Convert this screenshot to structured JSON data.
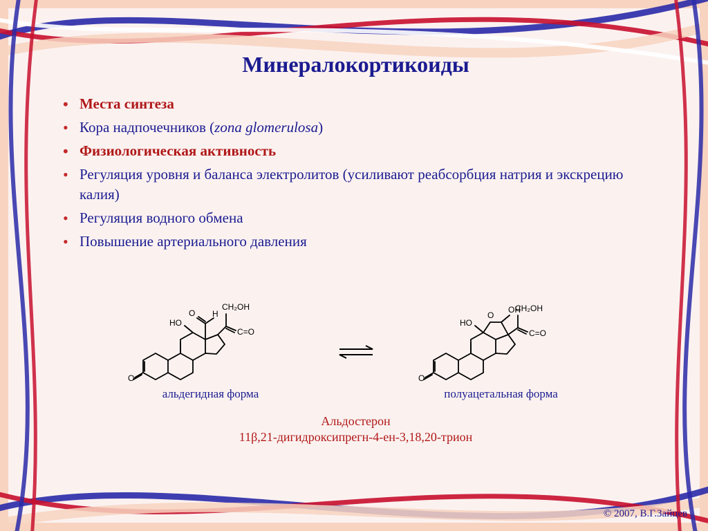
{
  "colors": {
    "title": "#1b1b90",
    "section": "#b01818",
    "body": "#1b1b90",
    "bullet": "#c42a2a",
    "black": "#000000",
    "compound": "#b01818",
    "footer": "#1b1b90",
    "background": "#fbf2f0",
    "frame_red": "#c8102e",
    "frame_blue": "#2a2aa8",
    "frame_peach": "#f7d3c0"
  },
  "title": "Минералокортикоиды",
  "bullets": [
    {
      "text": "Места синтеза",
      "role": "section"
    },
    {
      "text": "Кора надпочечников (",
      "suffix_italic": "zona glomerulosa",
      "tail": ")",
      "role": "body"
    },
    {
      "text": "Физиологическая активность",
      "role": "section"
    },
    {
      "text": "Регуляция уровня и баланса электролитов (усиливают реабсорбция натрия и экскрецию калия)",
      "role": "body"
    },
    {
      "text": "Регуляция водного обмена",
      "role": "body"
    },
    {
      "text": "Повышение артериального давления",
      "role": "body"
    }
  ],
  "fig_left_label": "альдегидная форма",
  "fig_right_label": "полуацетальная форма",
  "equilibrium": "⇌",
  "compound_name": "Альдостерон",
  "compound_iupac": "11β,21-дигидроксипрегн-4-ен-3,18,20-трион",
  "footer": "© 2007, В.Г.Зайцев",
  "molecule": {
    "atom_labels": [
      "O",
      "HO",
      "O",
      "H",
      "CH₂OH",
      "C=O",
      "O",
      "HO",
      "O",
      "OH",
      "CH₂OH",
      "C=O"
    ],
    "stroke": "#000000",
    "stroke_width": 1.5
  }
}
